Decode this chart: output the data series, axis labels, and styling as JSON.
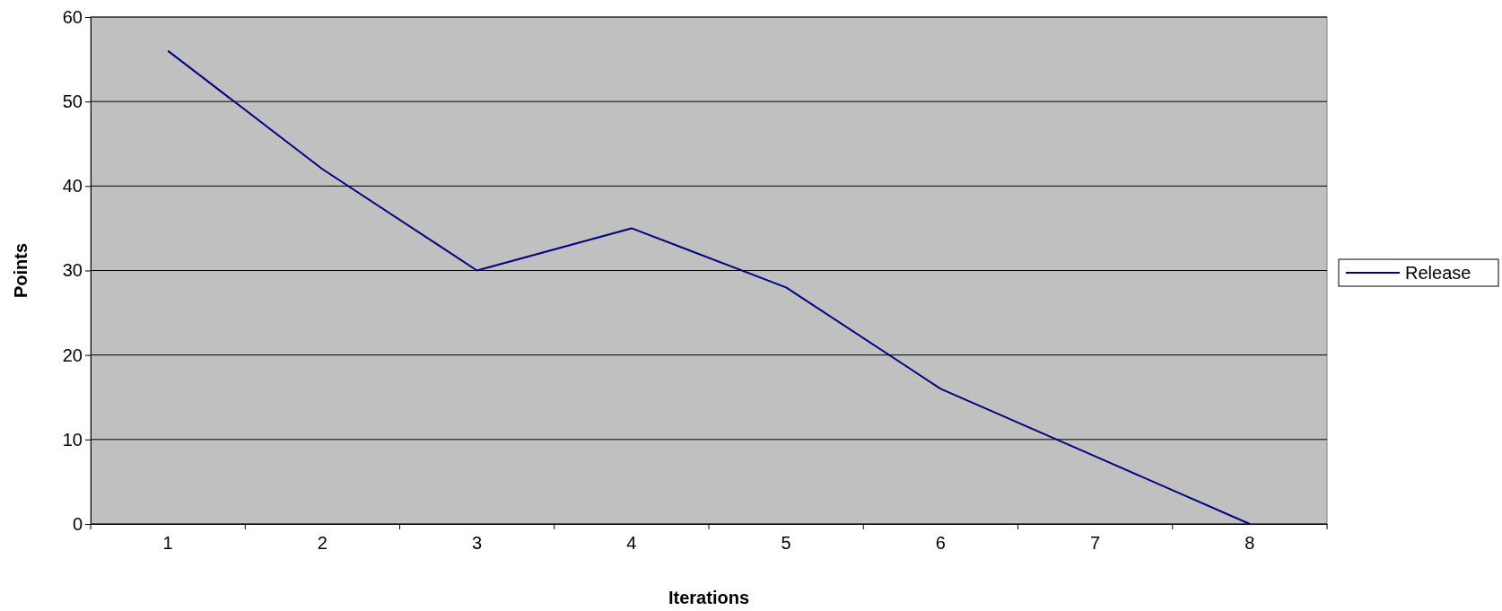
{
  "chart_data": {
    "type": "line",
    "xlabel": "Iterations",
    "ylabel": "Points",
    "categories": [
      "1",
      "2",
      "3",
      "4",
      "5",
      "6",
      "7",
      "8"
    ],
    "series": [
      {
        "name": "Release",
        "color": "#000080",
        "values": [
          56,
          42,
          30,
          35,
          28,
          16,
          8,
          0
        ]
      }
    ],
    "ylim": [
      0,
      60
    ],
    "yticks": [
      0,
      10,
      20,
      30,
      40,
      50,
      60
    ],
    "grid": "y",
    "legend": "right",
    "marker": "none",
    "line_style": "solid"
  }
}
